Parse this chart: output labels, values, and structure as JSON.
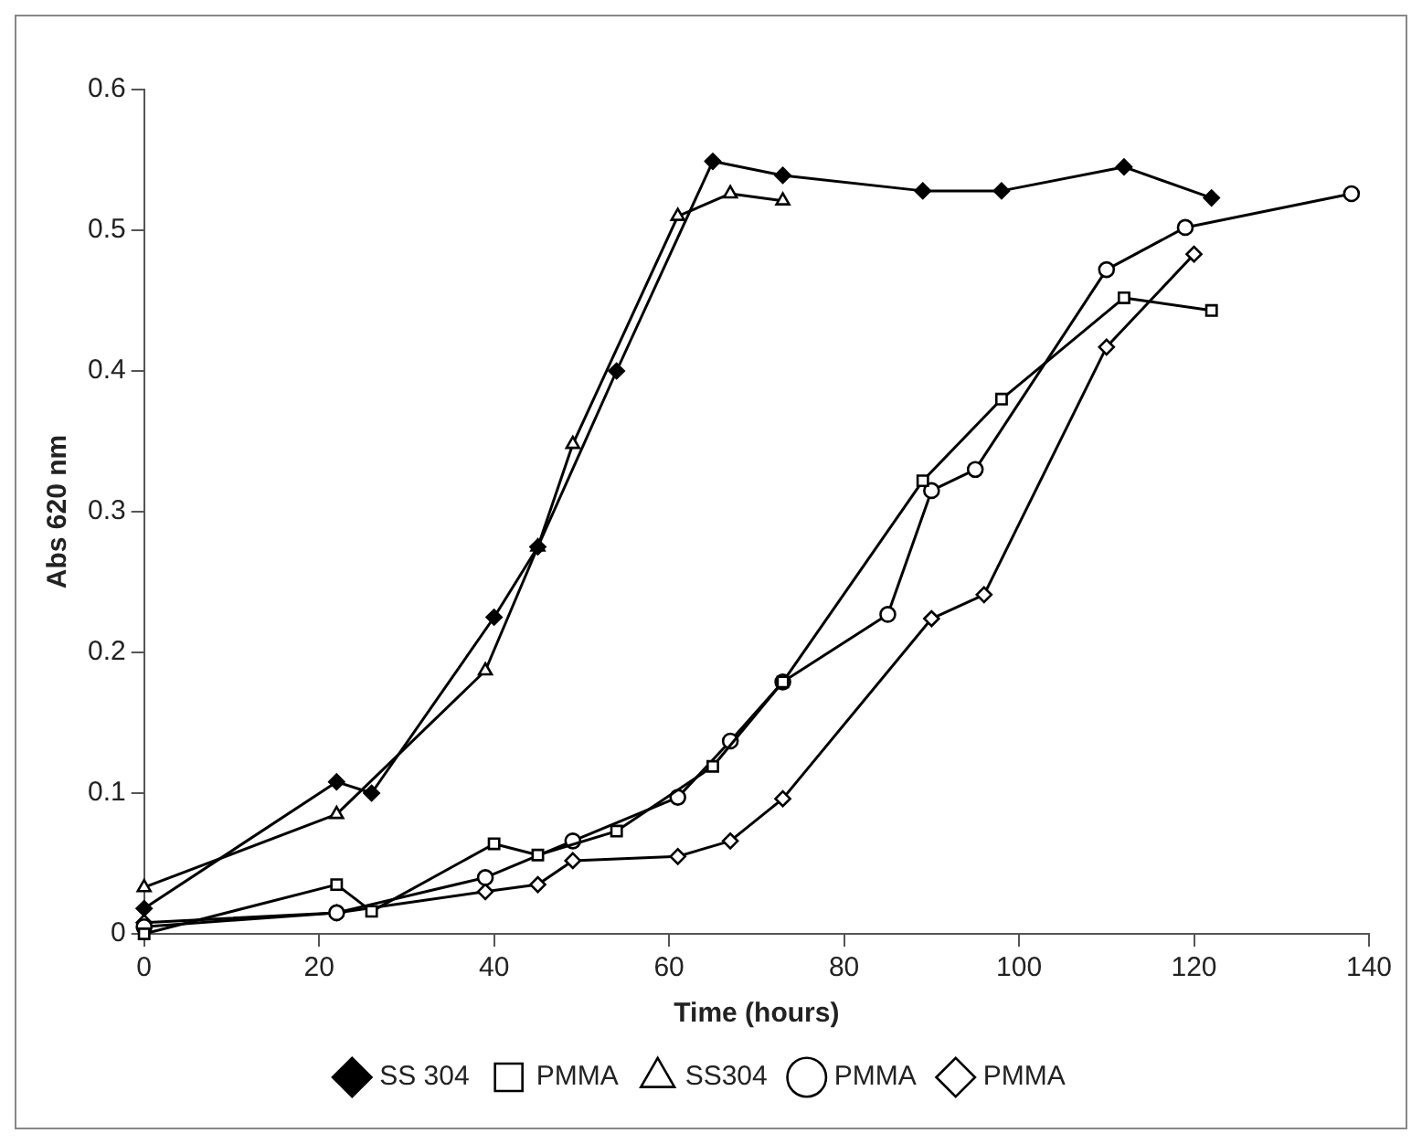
{
  "chart_data": {
    "type": "line",
    "xlabel": "Time (hours)",
    "ylabel": "Abs 620 nm",
    "xlim": [
      0,
      140
    ],
    "xticks": [
      0,
      20,
      40,
      60,
      80,
      100,
      120,
      140
    ],
    "ylim": [
      0,
      0.6
    ],
    "yticks": [
      0,
      0.1,
      0.2,
      0.3,
      0.4,
      0.5,
      0.6
    ],
    "grid": false,
    "legend": "bottom",
    "line_style": "solid",
    "series": [
      {
        "name": "SS 304",
        "color": "#000000",
        "marker": "diamond",
        "x": [
          0,
          22,
          26,
          40,
          45,
          54,
          65,
          73,
          89,
          98,
          112,
          122
        ],
        "values": [
          0.018,
          0.108,
          0.1,
          0.225,
          0.275,
          0.4,
          0.549,
          0.539,
          0.528,
          0.528,
          0.545,
          0.523
        ]
      },
      {
        "name": "PMMA",
        "color": "#000000",
        "marker": "square",
        "x": [
          0,
          22,
          26,
          40,
          45,
          54,
          65,
          73,
          89,
          98,
          112,
          122
        ],
        "values": [
          0.0,
          0.035,
          0.016,
          0.064,
          0.056,
          0.073,
          0.119,
          0.179,
          0.322,
          0.38,
          0.452,
          0.443
        ]
      },
      {
        "name": "SS304",
        "color": "#000000",
        "marker": "triangle",
        "x": [
          0,
          22,
          39,
          45,
          49,
          61,
          67,
          73
        ],
        "values": [
          0.033,
          0.085,
          0.187,
          0.275,
          0.348,
          0.51,
          0.526,
          0.521
        ]
      },
      {
        "name": "PMMA",
        "color": "#000000",
        "marker": "circle",
        "x": [
          0,
          22,
          39,
          49,
          61,
          67,
          73,
          85,
          90,
          95,
          110,
          119,
          138
        ],
        "values": [
          0.005,
          0.015,
          0.04,
          0.066,
          0.097,
          0.137,
          0.179,
          0.227,
          0.315,
          0.33,
          0.472,
          0.502,
          0.526
        ]
      },
      {
        "name": "PMMA",
        "color": "#000000",
        "marker": "diamond",
        "x": [
          0,
          22,
          39,
          45,
          49,
          61,
          67,
          73,
          90,
          96,
          110,
          120
        ],
        "values": [
          0.008,
          0.015,
          0.03,
          0.035,
          0.052,
          0.055,
          0.066,
          0.096,
          0.224,
          0.241,
          0.417,
          0.483
        ]
      }
    ]
  }
}
